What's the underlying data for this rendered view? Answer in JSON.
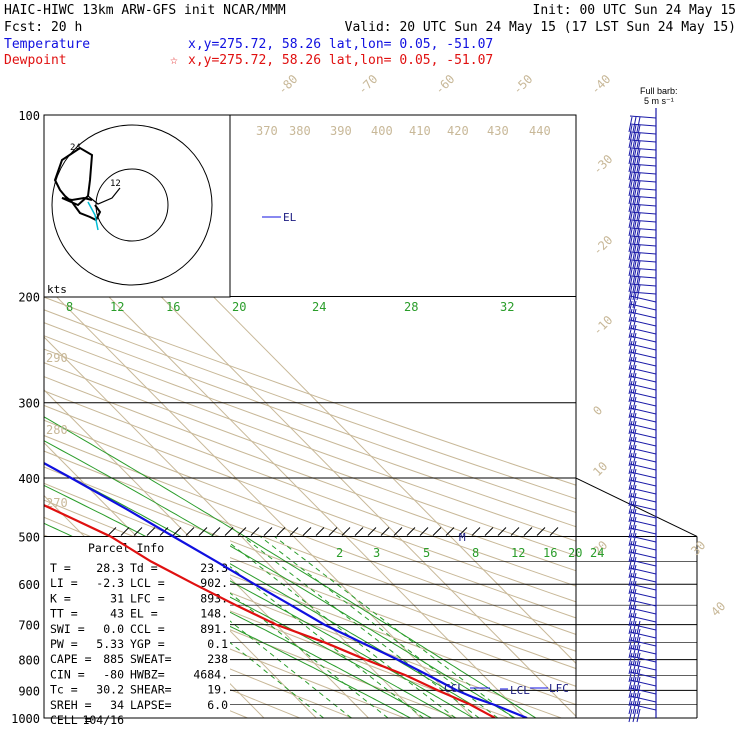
{
  "header": {
    "line1_left": "HAIC-HIWC 13km ARW-GFS init   NCAR/MMM",
    "line1_right": "Init: 00 UTC Sun 24 May 15",
    "line2_left": "Fcst:   20 h",
    "line2_right": "Valid: 20 UTC Sun 24 May 15 (17 LST Sun 24 May 15)",
    "temp_label": "Temperature",
    "temp_coords": "x,y=275.72, 58.26   lat,lon=  0.05, -51.07",
    "dew_label": "Dewpoint",
    "dew_coords": "x,y=275.72, 58.26   lat,lon=  0.05, -51.07",
    "dew_star": "☆"
  },
  "barb_legend": {
    "line1": "Full barb:",
    "line2": "5 m s⁻¹"
  },
  "hodograph": {
    "units_label": "kts",
    "label_24": "24",
    "label_12": "12"
  },
  "chart_data": {
    "type": "line",
    "pressure_levels": [
      100,
      200,
      300,
      400,
      500,
      600,
      700,
      800,
      900,
      1000
    ],
    "pressure_labels": [
      "100",
      "200",
      "300",
      "400",
      "500",
      "600",
      "700",
      "800",
      "900",
      "1000"
    ],
    "isotherm_labels": [
      "-80",
      "-70",
      "-60",
      "-50",
      "-40",
      "-30",
      "-20",
      "-10",
      "0",
      "10",
      "20",
      "30",
      "40"
    ],
    "theta_labels_top": [
      "370",
      "380",
      "390",
      "400",
      "410",
      "420",
      "430",
      "440"
    ],
    "theta_labels_left": [
      "290",
      "280",
      "270"
    ],
    "mixing_ratio_labels_upper": [
      "8",
      "12",
      "16",
      "20",
      "24",
      "28",
      "32"
    ],
    "mixing_ratio_labels_lower": [
      "2",
      "3",
      "5",
      "8",
      "12",
      "16",
      "20",
      "24"
    ],
    "series": [
      {
        "name": "Temperature",
        "color": "#1010e0",
        "points": [
          [
            1000,
            30.3
          ],
          [
            950,
            26.5
          ],
          [
            925,
            24.0
          ],
          [
            900,
            22.1
          ],
          [
            850,
            19.5
          ],
          [
            800,
            16.6
          ],
          [
            750,
            13.0
          ],
          [
            700,
            9.2
          ],
          [
            650,
            6.5
          ],
          [
            600,
            3.5
          ],
          [
            550,
            0.5
          ],
          [
            500,
            -3.0
          ],
          [
            450,
            -6.8
          ],
          [
            400,
            -11.5
          ],
          [
            350,
            -17.0
          ],
          [
            300,
            -25.0
          ],
          [
            250,
            -34.5
          ],
          [
            200,
            -45.5
          ],
          [
            175,
            -53.0
          ],
          [
            150,
            -61.5
          ],
          [
            130,
            -69.0
          ],
          [
            115,
            -75.0
          ],
          [
            100,
            -76.0
          ]
        ]
      },
      {
        "name": "Dewpoint",
        "color": "#e01010",
        "points": [
          [
            1000,
            24.2
          ],
          [
            980,
            23.3
          ],
          [
            950,
            22.0
          ],
          [
            925,
            20.3
          ],
          [
            900,
            18.5
          ],
          [
            850,
            15.2
          ],
          [
            800,
            10.5
          ],
          [
            750,
            6.0
          ],
          [
            700,
            0.0
          ],
          [
            650,
            -4.0
          ],
          [
            600,
            -8.0
          ],
          [
            550,
            -12.0
          ],
          [
            500,
            -15.0
          ],
          [
            450,
            -21.0
          ],
          [
            400,
            -28.0
          ],
          [
            350,
            -31.5
          ],
          [
            320,
            -39.0
          ],
          [
            290,
            -48.0
          ],
          [
            270,
            -49.0
          ],
          [
            250,
            -47.0
          ],
          [
            230,
            -51.0
          ],
          [
            200,
            -57.0
          ],
          [
            185,
            -61.0
          ],
          [
            170,
            -67.0
          ],
          [
            150,
            -78.0
          ],
          [
            140,
            -83.0
          ],
          [
            130,
            -83.0
          ],
          [
            110,
            -80.0
          ],
          [
            100,
            -79.0
          ]
        ]
      }
    ],
    "annotations": [
      "EL",
      "LCL",
      "LFC",
      "CCL",
      "M"
    ]
  },
  "parcel": {
    "title": "Parcel Info",
    "rows": [
      [
        "T   =",
        "28.3",
        "Td  =",
        "23.3"
      ],
      [
        "LI  =",
        "-2.3",
        "LCL =",
        "902."
      ],
      [
        "K   =",
        "31",
        "LFC =",
        "893."
      ],
      [
        "TT  =",
        "43",
        "EL  =",
        "148."
      ],
      [
        "SWI =",
        "0.0",
        "CCL =",
        "891."
      ],
      [
        "PW  =",
        "5.33",
        "YGP =",
        "0.1"
      ],
      [
        "CAPE =",
        "885",
        "SWEAT=",
        "238"
      ],
      [
        "CIN  =",
        "-80",
        "HWBZ=",
        "4684."
      ],
      [
        "Tc  =",
        "30.2",
        "SHEAR=",
        "19."
      ],
      [
        "SREH =",
        "34",
        "LAPSE=",
        "6.0"
      ],
      [
        "CELL =",
        "104/16",
        "",
        ""
      ]
    ]
  }
}
